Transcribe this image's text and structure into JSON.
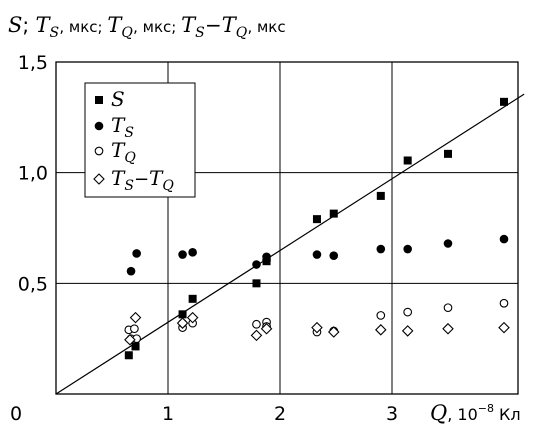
{
  "chart_data": {
    "type": "scatter",
    "title": {
      "parts": [
        {
          "sym": "S",
          "sub": ""
        },
        {
          "sep": "; "
        },
        {
          "sym": "T",
          "sub": "S"
        },
        {
          "unit": ", мкс; "
        },
        {
          "sym": "T",
          "sub": "Q"
        },
        {
          "unit": ", мкс; "
        },
        {
          "sym": "T",
          "sub": "S"
        },
        {
          "sep": "−"
        },
        {
          "sym": "T",
          "sub": "Q"
        },
        {
          "unit": ", мкс"
        }
      ]
    },
    "xlabel": {
      "sym": "Q",
      "unit": ", 10",
      "exp": "−8",
      "unit2": " Кл"
    },
    "xlim": [
      0,
      4
    ],
    "ylim": [
      0,
      1.5
    ],
    "xticks": [
      {
        "v": 0,
        "label": "0"
      },
      {
        "v": 1,
        "label": "1"
      },
      {
        "v": 2,
        "label": "2"
      },
      {
        "v": 3,
        "label": "3"
      }
    ],
    "yticks": [
      {
        "v": 0.5,
        "label": "0,5"
      },
      {
        "v": 1.0,
        "label": "1,0"
      },
      {
        "v": 1.5,
        "label": "1,5"
      }
    ],
    "grid": true,
    "legend_position": "top-left",
    "series": [
      {
        "name": "S",
        "sub": "",
        "marker": "square-filled",
        "x": [
          0.65,
          0.71,
          1.13,
          1.22,
          1.79,
          1.88,
          2.33,
          2.48,
          2.9,
          3.14,
          3.5,
          4.0
        ],
        "y": [
          0.175,
          0.215,
          0.36,
          0.43,
          0.5,
          0.6,
          0.79,
          0.815,
          0.895,
          1.055,
          1.085,
          1.32
        ]
      },
      {
        "name": "T",
        "sub": "S",
        "marker": "circle-filled",
        "x": [
          0.67,
          0.72,
          1.13,
          1.22,
          1.79,
          1.88,
          1.88,
          2.33,
          2.48,
          2.9,
          3.14,
          3.5,
          4.0
        ],
        "y": [
          0.555,
          0.635,
          0.63,
          0.64,
          0.585,
          0.605,
          0.62,
          0.63,
          0.625,
          0.655,
          0.655,
          0.68,
          0.7
        ]
      },
      {
        "name": "T",
        "sub": "Q",
        "marker": "circle-open",
        "x": [
          0.65,
          0.7,
          0.67,
          0.72,
          1.13,
          1.13,
          1.22,
          1.79,
          1.88,
          1.88,
          2.33,
          2.48,
          2.9,
          3.14,
          3.5,
          4.0
        ],
        "y": [
          0.29,
          0.295,
          0.25,
          0.25,
          0.3,
          0.32,
          0.32,
          0.315,
          0.325,
          0.305,
          0.28,
          0.285,
          0.355,
          0.37,
          0.39,
          0.41
        ]
      },
      {
        "name": "T",
        "sub": "S",
        "name2": "T",
        "sub2": "Q",
        "marker": "diamond-open",
        "x": [
          0.66,
          0.71,
          1.13,
          1.22,
          1.79,
          1.88,
          2.33,
          2.48,
          2.9,
          3.14,
          3.5,
          4.0
        ],
        "y": [
          0.245,
          0.345,
          0.32,
          0.345,
          0.265,
          0.295,
          0.3,
          0.28,
          0.29,
          0.285,
          0.295,
          0.3
        ]
      }
    ],
    "trend_line": {
      "x": [
        0,
        4.18
      ],
      "y": [
        0,
        1.355
      ]
    }
  }
}
